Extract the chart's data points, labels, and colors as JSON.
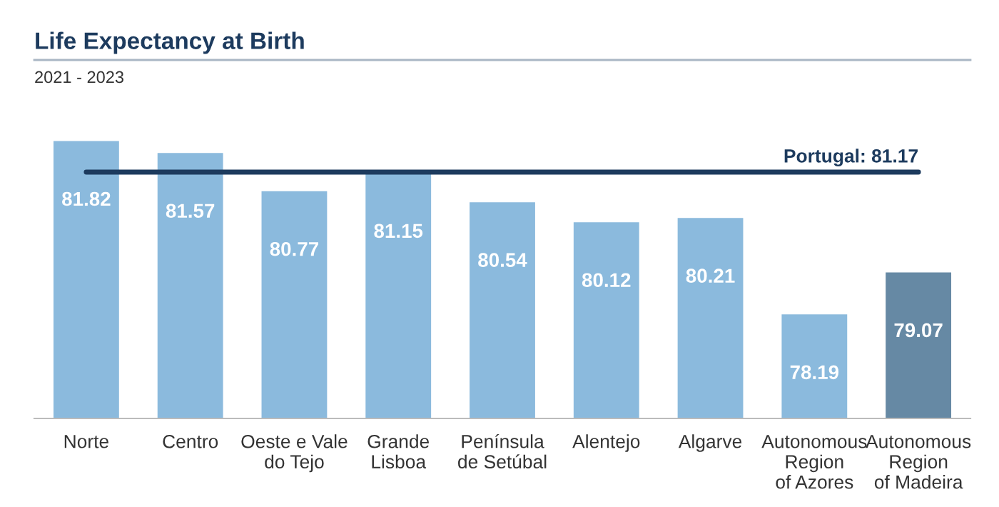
{
  "chart_data": {
    "type": "bar",
    "title": "Life Expectancy at Birth",
    "subtitle": "2021 - 2023",
    "categories": [
      "Norte",
      "Centro",
      "Oeste e Vale\ndo Tejo",
      "Grande\nLisboa",
      "Península\nde Setúbal",
      "Alentejo",
      "Algarve",
      "Autonomous\nRegion\nof Azores",
      "Autonomous\nRegion\nof Madeira"
    ],
    "values": [
      81.82,
      81.57,
      80.77,
      81.15,
      80.54,
      80.12,
      80.21,
      78.19,
      79.07
    ],
    "colors": [
      "#8bbadd",
      "#8bbadd",
      "#8bbadd",
      "#8bbadd",
      "#8bbadd",
      "#8bbadd",
      "#8bbadd",
      "#8bbadd",
      "#6689a4"
    ],
    "data_labels": true,
    "tick_labels": "x",
    "grid": false,
    "legend": false,
    "ref_lines": [
      {
        "axis": "y",
        "value": 81.17,
        "label": "Portugal: 81.17",
        "color": "#1d3b5e",
        "line_style": "solid"
      }
    ]
  }
}
